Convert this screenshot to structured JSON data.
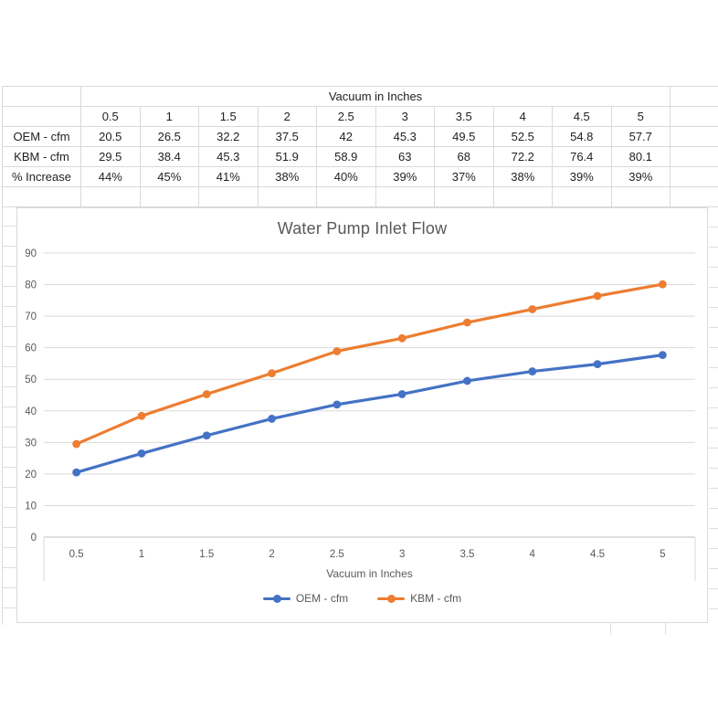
{
  "table": {
    "header": "Vacuum in Inches",
    "columns": [
      "0.5",
      "1",
      "1.5",
      "2",
      "2.5",
      "3",
      "3.5",
      "4",
      "4.5",
      "5"
    ],
    "rows": [
      {
        "label": "OEM - cfm",
        "values": [
          "20.5",
          "26.5",
          "32.2",
          "37.5",
          "42",
          "45.3",
          "49.5",
          "52.5",
          "54.8",
          "57.7"
        ]
      },
      {
        "label": "KBM - cfm",
        "values": [
          "29.5",
          "38.4",
          "45.3",
          "51.9",
          "58.9",
          "63",
          "68",
          "72.2",
          "76.4",
          "80.1"
        ]
      },
      {
        "label": "% Increase",
        "values": [
          "44%",
          "45%",
          "41%",
          "38%",
          "40%",
          "39%",
          "37%",
          "38%",
          "39%",
          "39%"
        ]
      }
    ]
  },
  "chart_data": {
    "type": "line",
    "title": "Water Pump Inlet Flow",
    "xlabel": "Vacuum in Inches",
    "categories": [
      "0.5",
      "1",
      "1.5",
      "2",
      "2.5",
      "3",
      "3.5",
      "4",
      "4.5",
      "5"
    ],
    "series": [
      {
        "name": "OEM - cfm",
        "color": "#4472C4",
        "values": [
          20.5,
          26.5,
          32.2,
          37.5,
          42,
          45.3,
          49.5,
          52.5,
          54.8,
          57.7
        ]
      },
      {
        "name": "KBM - cfm",
        "color": "#ED7D31",
        "values": [
          29.5,
          38.4,
          45.3,
          51.9,
          58.9,
          63,
          68,
          72.2,
          76.4,
          80.1
        ]
      }
    ],
    "ylim": [
      0,
      90
    ],
    "ytick_step": 10,
    "grid": true,
    "legend_position": "bottom",
    "colors": {
      "gridline": "#d9d9d9",
      "axis_line": "#bfbfbf",
      "label_text": "#595959"
    }
  }
}
